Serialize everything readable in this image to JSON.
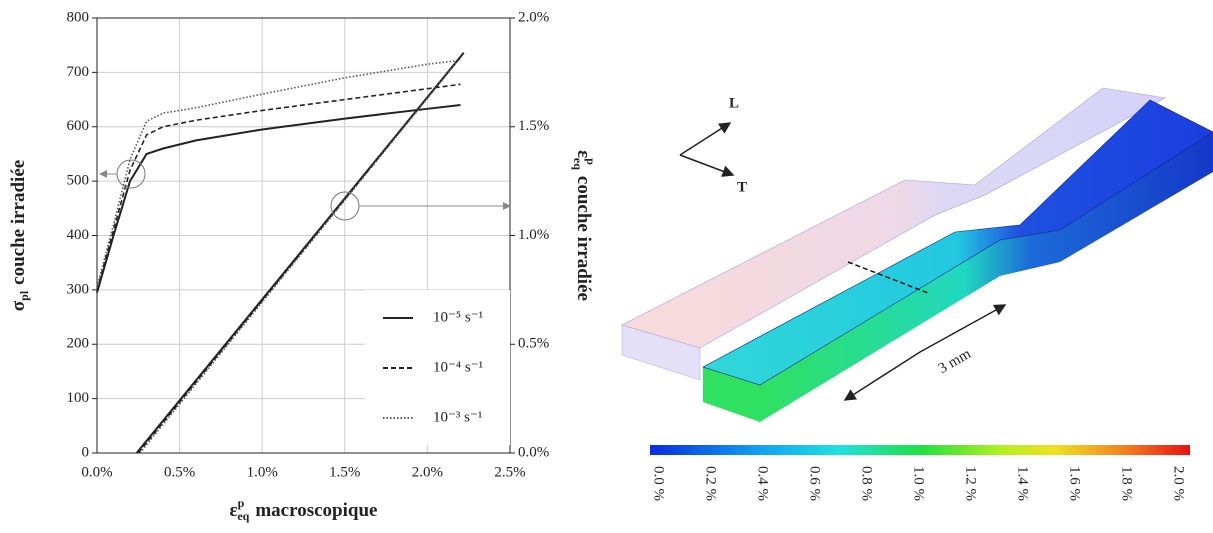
{
  "chart_data": {
    "type": "line",
    "x_label": {
      "symbol": "ε",
      "sup": "p",
      "sub": "eq",
      "text": "macroscopique"
    },
    "y_label": {
      "symbol": "σ",
      "sub": "pl",
      "text": "couche irradiée"
    },
    "y2_label": {
      "symbol": "ε",
      "sup": "p",
      "sub": "eq",
      "text": "couche irradiée"
    },
    "xlim": [
      0,
      2.5
    ],
    "xticks": [
      {
        "value": 0,
        "label": "0.0%"
      },
      {
        "value": 0.5,
        "label": "0.5%"
      },
      {
        "value": 1,
        "label": "1.0%"
      },
      {
        "value": 1.5,
        "label": "1.5%"
      },
      {
        "value": 2,
        "label": "2.0%"
      },
      {
        "value": 2.5,
        "label": "2.5%"
      }
    ],
    "ylim": [
      0,
      800
    ],
    "yticks": [
      0,
      100,
      200,
      300,
      400,
      500,
      600,
      700,
      800
    ],
    "y2lim": [
      0,
      2
    ],
    "y2ticks": [
      {
        "value": 0,
        "label": "0.0%"
      },
      {
        "value": 0.5,
        "label": "0.5%"
      },
      {
        "value": 1,
        "label": "1.0%"
      },
      {
        "value": 1.5,
        "label": "1.5%"
      },
      {
        "value": 2,
        "label": "2.0%"
      }
    ],
    "grid": true,
    "legend": "lower right",
    "series": [
      {
        "name": "10⁻⁵ s⁻¹",
        "color": "#222222",
        "dash": "solid",
        "x": [
          0,
          0.1,
          0.2,
          0.3,
          0.4,
          0.6,
          1.0,
          1.5,
          2.0,
          2.2
        ],
        "values": [
          295,
          400,
          500,
          550,
          560,
          575,
          595,
          615,
          633,
          640
        ]
      },
      {
        "name": "10⁻⁴ s⁻¹",
        "color": "#222222",
        "dash": "dashed",
        "x": [
          0,
          0.1,
          0.2,
          0.3,
          0.4,
          0.6,
          1.0,
          1.5,
          2.0,
          2.2
        ],
        "values": [
          300,
          410,
          520,
          585,
          600,
          612,
          630,
          650,
          670,
          678
        ]
      },
      {
        "name": "10⁻³ s⁻¹",
        "color": "#555555",
        "dash": "dotted",
        "x": [
          0,
          0.1,
          0.2,
          0.3,
          0.4,
          0.6,
          1.0,
          1.5,
          2.0,
          2.2
        ],
        "values": [
          305,
          420,
          540,
          610,
          625,
          635,
          660,
          690,
          715,
          722
        ]
      },
      {
        "color": "#222222",
        "dash": "solid",
        "axis": "y2",
        "x": [
          0.24,
          2.22
        ],
        "values": [
          0,
          1.84
        ]
      },
      {
        "color": "#222222",
        "dash": "dashed",
        "axis": "y2",
        "x": [
          0.25,
          2.2
        ],
        "values": [
          0,
          1.82
        ]
      },
      {
        "color": "#555555",
        "dash": "dotted",
        "axis": "y2",
        "x": [
          0.26,
          2.18
        ],
        "values": [
          0,
          1.8
        ]
      }
    ]
  },
  "figure": {
    "axis_L": "L",
    "axis_T": "T",
    "scale": "3 mm",
    "colorbar": {
      "lim": [
        0,
        2
      ],
      "ticks": [
        {
          "value": 0,
          "label": "0.0 %"
        },
        {
          "value": 0.2,
          "label": "0.2 %"
        },
        {
          "value": 0.4,
          "label": "0.4 %"
        },
        {
          "value": 0.6,
          "label": "0.6 %"
        },
        {
          "value": 0.8,
          "label": "0.8 %"
        },
        {
          "value": 1,
          "label": "1.0 %"
        },
        {
          "value": 1.2,
          "label": "1.2 %"
        },
        {
          "value": 1.4,
          "label": "1.4 %"
        },
        {
          "value": 1.6,
          "label": "1.6 %"
        },
        {
          "value": 1.8,
          "label": "1.8 %"
        },
        {
          "value": 2,
          "label": "2.0 %"
        }
      ]
    }
  }
}
